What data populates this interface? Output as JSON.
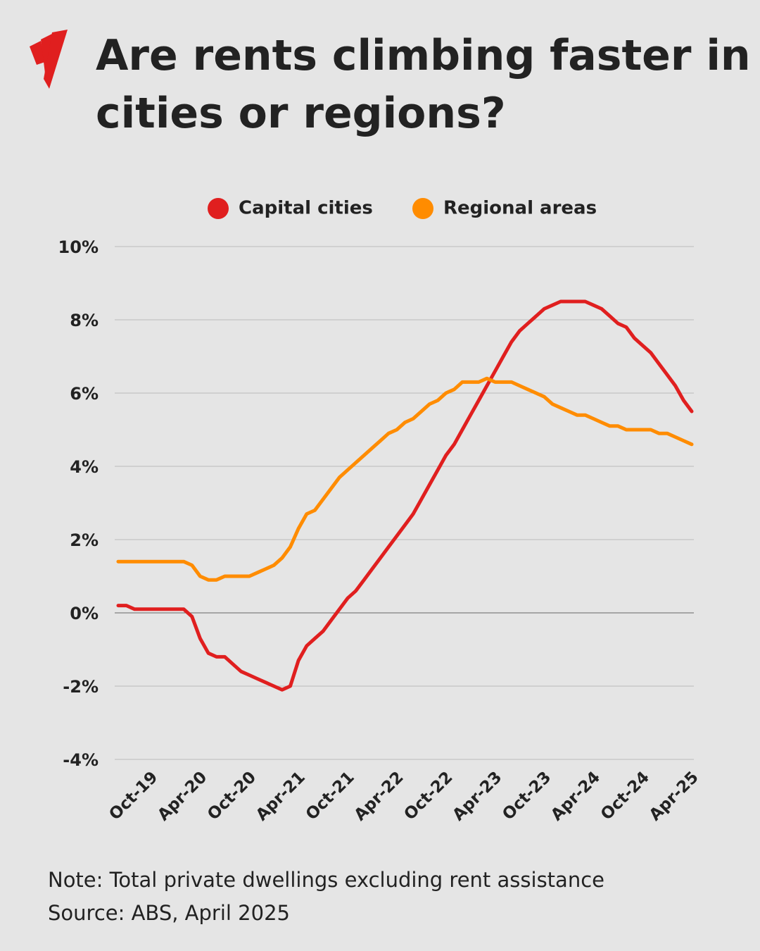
{
  "chart_data": {
    "type": "line",
    "title": "Are rents climbing faster in cities or regions?",
    "note": "Note: Total private dwellings excluding rent assistance",
    "source": "Source: ABS, April 2025",
    "categories": [
      null,
      null,
      null,
      null,
      "Oct-19",
      null,
      null,
      null,
      null,
      null,
      "Apr-20",
      null,
      null,
      null,
      null,
      null,
      "Oct-20",
      null,
      null,
      null,
      null,
      null,
      "Apr-21",
      null,
      null,
      null,
      null,
      null,
      "Oct-21",
      null,
      null,
      null,
      null,
      null,
      "Apr-22",
      null,
      null,
      null,
      null,
      null,
      "Oct-22",
      null,
      null,
      null,
      null,
      null,
      "Apr-23",
      null,
      null,
      null,
      null,
      null,
      "Oct-23",
      null,
      null,
      null,
      null,
      null,
      "Apr-24",
      null,
      null,
      null,
      null,
      null,
      "Oct-24",
      null,
      null,
      null,
      null,
      null,
      "Apr-25"
    ],
    "series": [
      {
        "name": "Capital cities",
        "color": "#e01f1f",
        "values": [
          0.2,
          0.2,
          0.1,
          0.1,
          0.1,
          0.1,
          0.1,
          0.1,
          0.1,
          -0.1,
          -0.7,
          -1.1,
          -1.2,
          -1.2,
          -1.4,
          -1.6,
          -1.7,
          -1.8,
          -1.9,
          -2.0,
          -2.1,
          -2.0,
          -1.3,
          -0.9,
          -0.7,
          -0.5,
          -0.2,
          0.1,
          0.4,
          0.6,
          0.9,
          1.2,
          1.5,
          1.8,
          2.1,
          2.4,
          2.7,
          3.1,
          3.5,
          3.9,
          4.3,
          4.6,
          5.0,
          5.4,
          5.8,
          6.2,
          6.6,
          7.0,
          7.4,
          7.7,
          7.9,
          8.1,
          8.3,
          8.4,
          8.5,
          8.5,
          8.5,
          8.5,
          8.4,
          8.3,
          8.1,
          7.9,
          7.8,
          7.5,
          7.3,
          7.1,
          6.8,
          6.5,
          6.2,
          5.8,
          5.5
        ]
      },
      {
        "name": "Regional areas",
        "color": "#ff8c00",
        "values": [
          1.4,
          1.4,
          1.4,
          1.4,
          1.4,
          1.4,
          1.4,
          1.4,
          1.4,
          1.3,
          1.0,
          0.9,
          0.9,
          1.0,
          1.0,
          1.0,
          1.0,
          1.1,
          1.2,
          1.3,
          1.5,
          1.8,
          2.3,
          2.7,
          2.8,
          3.1,
          3.4,
          3.7,
          3.9,
          4.1,
          4.3,
          4.5,
          4.7,
          4.9,
          5.0,
          5.2,
          5.3,
          5.5,
          5.7,
          5.8,
          6.0,
          6.1,
          6.3,
          6.3,
          6.3,
          6.4,
          6.3,
          6.3,
          6.3,
          6.2,
          6.1,
          6.0,
          5.9,
          5.7,
          5.6,
          5.5,
          5.4,
          5.4,
          5.3,
          5.2,
          5.1,
          5.1,
          5.0,
          5.0,
          5.0,
          5.0,
          4.9,
          4.9,
          4.8,
          4.7,
          4.6
        ]
      }
    ],
    "ylim": [
      -4,
      10
    ],
    "yticks": [
      {
        "value": -4,
        "label": "-4%"
      },
      {
        "value": -2,
        "label": "-2%"
      },
      {
        "value": 0,
        "label": "0%"
      },
      {
        "value": 2,
        "label": "2%"
      },
      {
        "value": 4,
        "label": "4%"
      },
      {
        "value": 6,
        "label": "6%"
      },
      {
        "value": 8,
        "label": "8%"
      },
      {
        "value": 10,
        "label": "10%"
      }
    ],
    "grid": true,
    "legend": "top"
  }
}
